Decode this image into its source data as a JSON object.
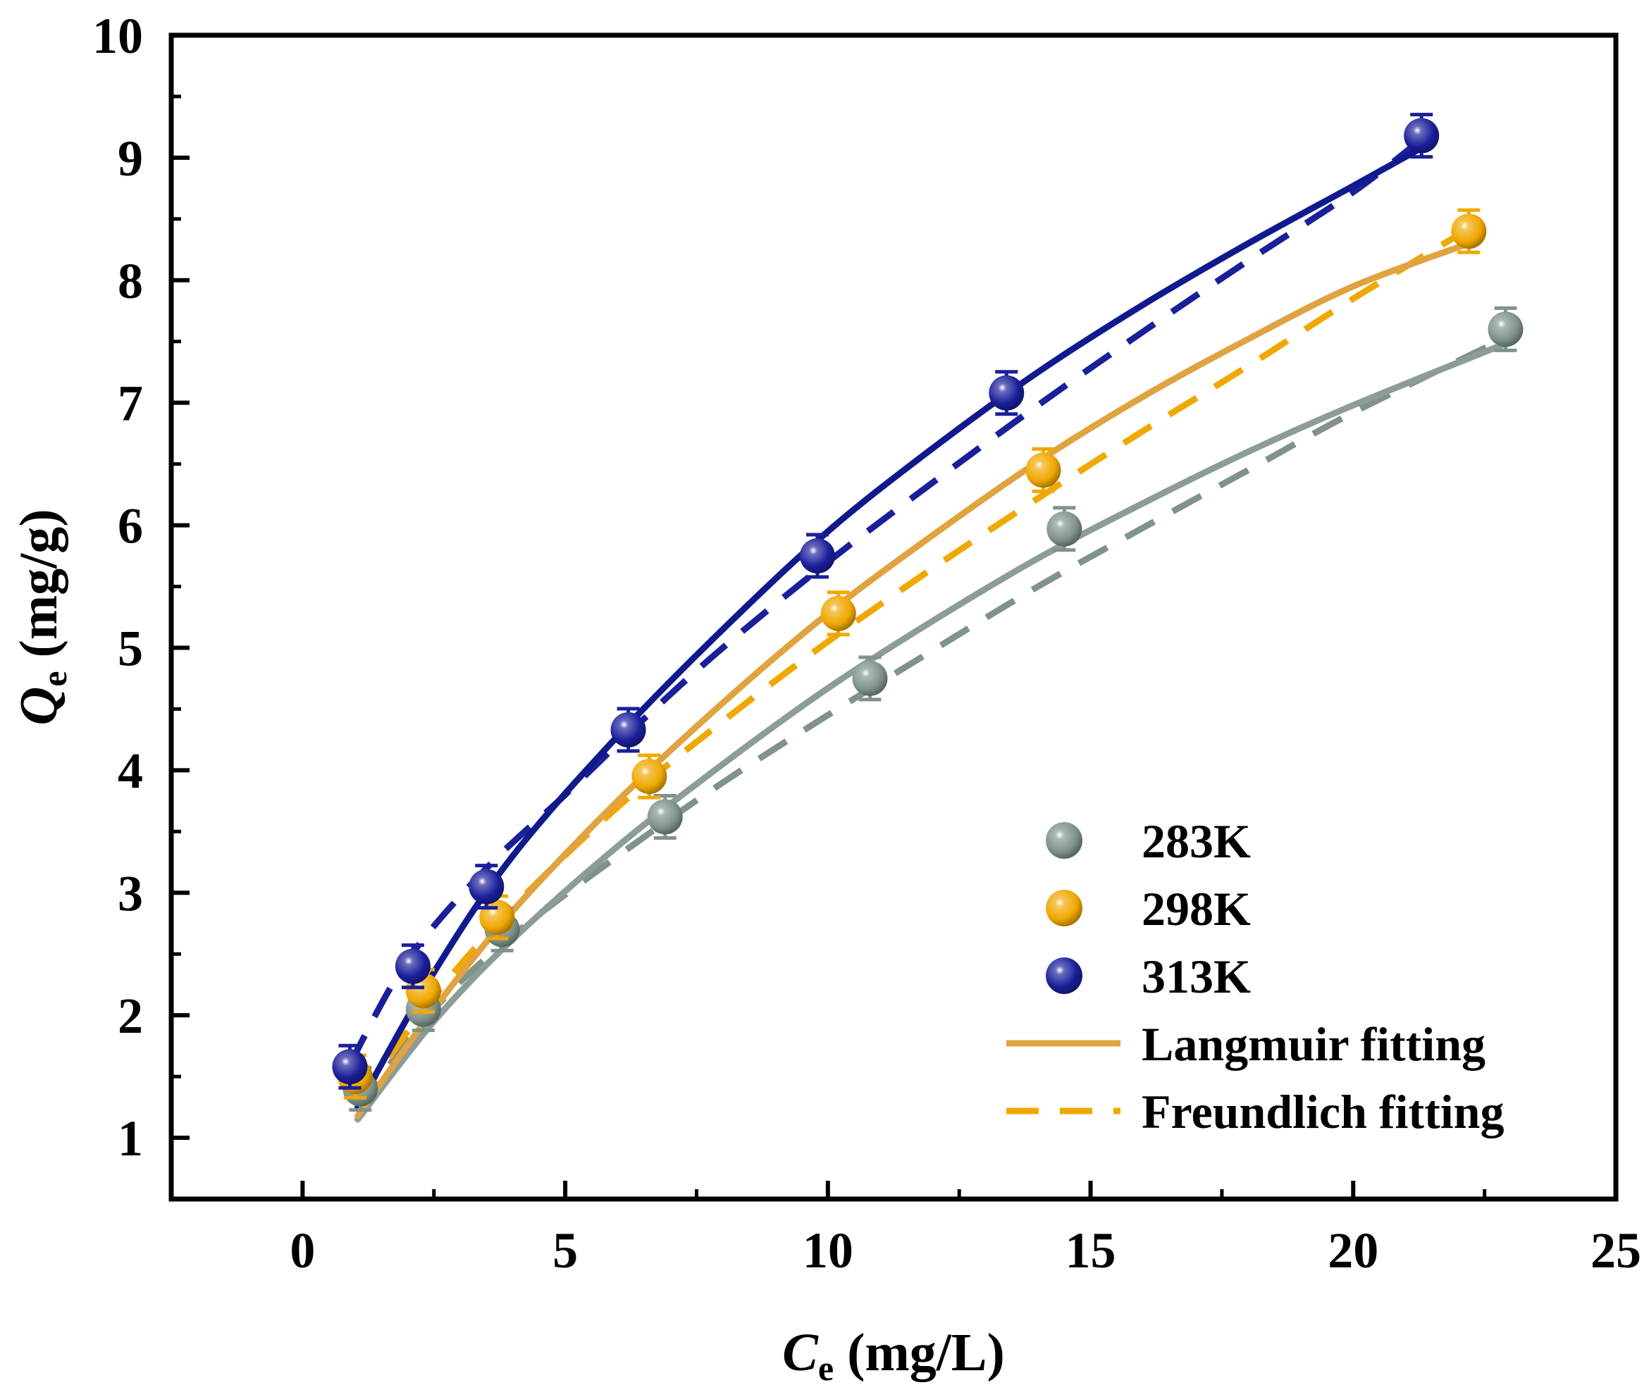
{
  "chart_data": {
    "type": "scatter",
    "title": "",
    "xlabel": {
      "symbol": "C",
      "subscript": "e",
      "unit": " (mg/L)"
    },
    "ylabel": {
      "symbol": "Q",
      "subscript": "e",
      "unit": " (mg/g)"
    },
    "xlim": [
      -2.5,
      25
    ],
    "ylim": [
      0.5,
      10
    ],
    "x_ticks": [
      0,
      5,
      10,
      15,
      20,
      25
    ],
    "x_tick_labels": [
      "0",
      "5",
      "10",
      "15",
      "20",
      "25"
    ],
    "y_ticks": [
      1,
      2,
      3,
      4,
      5,
      6,
      7,
      8,
      9,
      10
    ],
    "y_tick_labels": [
      "1",
      "2",
      "3",
      "4",
      "5",
      "6",
      "7",
      "8",
      "9",
      "10"
    ],
    "grid": false,
    "legend_position": "bottom-right",
    "series": [
      {
        "name": "283K",
        "color": "#7f938a",
        "fit_color": "#8c9d99",
        "x": [
          1.1,
          2.3,
          3.8,
          6.9,
          10.8,
          14.5,
          22.9
        ],
        "y": [
          1.4,
          2.05,
          2.7,
          3.62,
          4.75,
          5.97,
          7.6
        ],
        "langmuir": [
          [
            1.05,
            1.15
          ],
          [
            2.5,
            1.95
          ],
          [
            4,
            2.62
          ],
          [
            6,
            3.38
          ],
          [
            8,
            4.05
          ],
          [
            10,
            4.67
          ],
          [
            12,
            5.22
          ],
          [
            14,
            5.73
          ],
          [
            16,
            6.18
          ],
          [
            18,
            6.6
          ],
          [
            20,
            6.98
          ],
          [
            23,
            7.5
          ]
        ],
        "freundlich": [
          [
            1.05,
            1.25
          ],
          [
            2.5,
            2.05
          ],
          [
            4,
            2.65
          ],
          [
            6,
            3.3
          ],
          [
            8,
            3.9
          ],
          [
            10,
            4.45
          ],
          [
            12,
            4.98
          ],
          [
            14,
            5.5
          ],
          [
            16,
            5.98
          ],
          [
            18,
            6.45
          ],
          [
            20,
            6.92
          ],
          [
            23,
            7.55
          ]
        ]
      },
      {
        "name": "298K",
        "color": "#f0a800",
        "fit_color": "#e0a340",
        "x": [
          1.0,
          2.3,
          3.7,
          6.6,
          10.2,
          14.1,
          22.2
        ],
        "y": [
          1.5,
          2.2,
          2.8,
          3.95,
          5.28,
          6.45,
          8.4
        ],
        "langmuir": [
          [
            1.05,
            1.18
          ],
          [
            2.5,
            2.05
          ],
          [
            4,
            2.85
          ],
          [
            6,
            3.75
          ],
          [
            8,
            4.55
          ],
          [
            10,
            5.28
          ],
          [
            12,
            5.92
          ],
          [
            14,
            6.52
          ],
          [
            16,
            7.05
          ],
          [
            18,
            7.52
          ],
          [
            20,
            7.95
          ],
          [
            22.2,
            8.3
          ]
        ],
        "freundlich": [
          [
            1.05,
            1.3
          ],
          [
            2.5,
            2.15
          ],
          [
            4,
            2.88
          ],
          [
            6,
            3.7
          ],
          [
            8,
            4.4
          ],
          [
            10,
            5.05
          ],
          [
            12,
            5.65
          ],
          [
            14,
            6.22
          ],
          [
            16,
            6.77
          ],
          [
            18,
            7.3
          ],
          [
            20,
            7.85
          ],
          [
            22.2,
            8.42
          ]
        ]
      },
      {
        "name": "313K",
        "color": "#1a1f9a",
        "fit_color": "#101a8e",
        "x": [
          0.9,
          2.1,
          3.5,
          6.2,
          9.8,
          13.4,
          21.3
        ],
        "y": [
          1.58,
          2.4,
          3.05,
          4.33,
          5.75,
          7.08,
          9.18
        ],
        "langmuir": [
          [
            1.05,
            1.25
          ],
          [
            2.5,
            2.35
          ],
          [
            4,
            3.3
          ],
          [
            6,
            4.28
          ],
          [
            8,
            5.15
          ],
          [
            10,
            5.95
          ],
          [
            12,
            6.63
          ],
          [
            14,
            7.25
          ],
          [
            16,
            7.8
          ],
          [
            18,
            8.3
          ],
          [
            20,
            8.77
          ],
          [
            21.3,
            9.08
          ]
        ],
        "freundlich": [
          [
            0.9,
            1.6
          ],
          [
            2,
            2.45
          ],
          [
            3.5,
            3.2
          ],
          [
            5,
            3.8
          ],
          [
            6.5,
            4.42
          ],
          [
            8,
            5.0
          ],
          [
            10,
            5.7
          ],
          [
            12,
            6.35
          ],
          [
            14,
            6.98
          ],
          [
            16,
            7.58
          ],
          [
            18,
            8.16
          ],
          [
            20,
            8.72
          ],
          [
            21.3,
            9.15
          ]
        ]
      }
    ],
    "legend_entries": [
      {
        "label": "283K",
        "kind": "marker",
        "series": 0
      },
      {
        "label": "298K",
        "kind": "marker",
        "series": 1
      },
      {
        "label": "313K",
        "kind": "marker",
        "series": 2
      },
      {
        "label": "Langmuir fitting",
        "kind": "solid-line",
        "color": "#e0a340"
      },
      {
        "label": "Freundlich fitting",
        "kind": "dashed-line",
        "color": "#f0a800"
      }
    ]
  }
}
